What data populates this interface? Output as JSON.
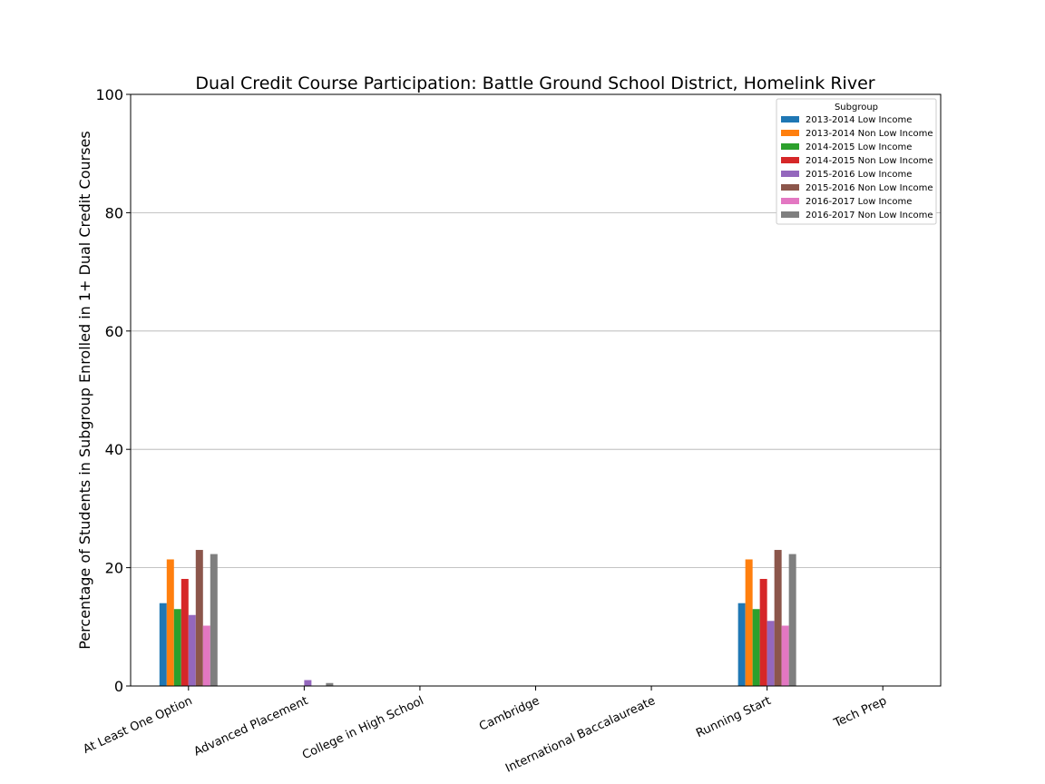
{
  "chart_data": {
    "type": "bar",
    "title": "Dual Credit Course Participation: Battle Ground School District, Homelink River",
    "xlabel": "",
    "ylabel": "Percentage of Students in Subgroup Enrolled in 1+ Dual Credit Courses",
    "ylim": [
      0,
      100
    ],
    "yticks": [
      0,
      20,
      40,
      60,
      80,
      100
    ],
    "grid": "horizontal",
    "legend_title": "Subgroup",
    "legend_position": "top-right",
    "categories": [
      "At Least One Option",
      "Advanced Placement",
      "College in High School",
      "Cambridge",
      "International Baccalaureate",
      "Running Start",
      "Tech Prep"
    ],
    "series": [
      {
        "name": "2013-2014 Low Income",
        "color": "#1f77b4",
        "values": [
          14.0,
          0,
          0,
          0,
          0,
          14.0,
          0
        ]
      },
      {
        "name": "2013-2014 Non Low Income",
        "color": "#ff7f0e",
        "values": [
          21.4,
          0,
          0,
          0,
          0,
          21.4,
          0
        ]
      },
      {
        "name": "2014-2015 Low Income",
        "color": "#2ca02c",
        "values": [
          13.0,
          0,
          0,
          0,
          0,
          13.0,
          0
        ]
      },
      {
        "name": "2014-2015 Non Low Income",
        "color": "#d62728",
        "values": [
          18.1,
          0,
          0,
          0,
          0,
          18.1,
          0
        ]
      },
      {
        "name": "2015-2016 Low Income",
        "color": "#9467bd",
        "values": [
          12.0,
          1.0,
          0,
          0,
          0,
          11.0,
          0
        ]
      },
      {
        "name": "2015-2016 Non Low Income",
        "color": "#8c564b",
        "values": [
          23.0,
          0,
          0,
          0,
          0,
          23.0,
          0
        ]
      },
      {
        "name": "2016-2017 Low Income",
        "color": "#e377c2",
        "values": [
          10.2,
          0,
          0,
          0,
          0,
          10.2,
          0
        ]
      },
      {
        "name": "2016-2017 Non Low Income",
        "color": "#7f7f7f",
        "values": [
          22.3,
          0.5,
          0,
          0,
          0,
          22.3,
          0
        ]
      }
    ]
  }
}
